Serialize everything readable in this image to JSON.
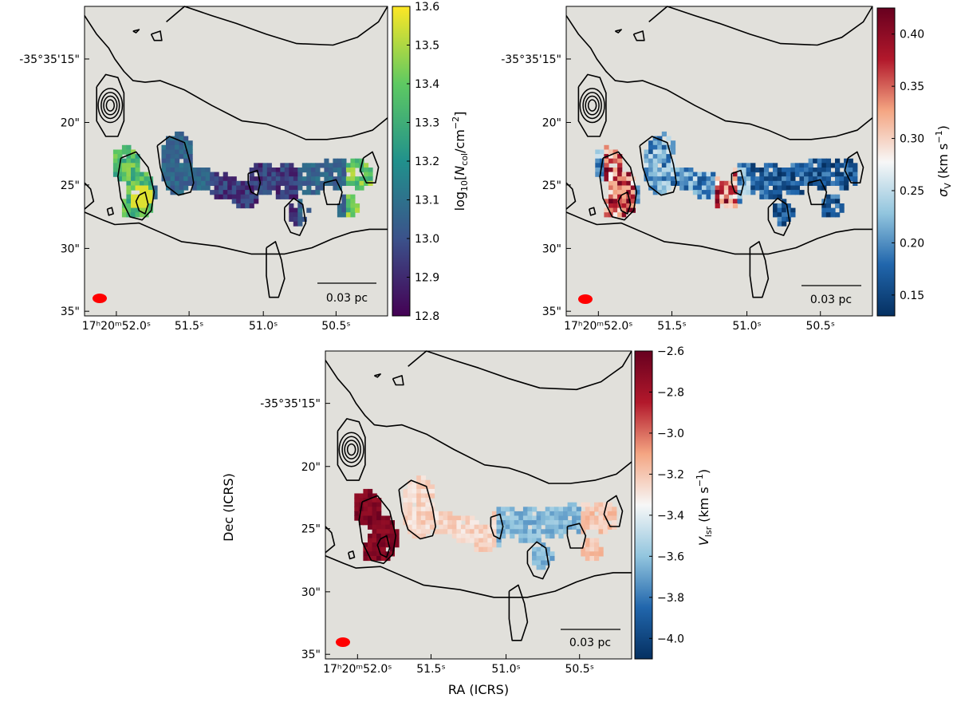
{
  "panels": [
    {
      "id": "coldens",
      "colorbar": {
        "label": "log₁₀[N col/cm⁻²]",
        "ticks": [
          "13.6",
          "13.5",
          "13.4",
          "13.3",
          "13.2",
          "13.1",
          "13.0",
          "12.9",
          "12.8"
        ],
        "vmin": 12.8,
        "vmax": 13.6,
        "colormap": [
          "#440154",
          "#3b528b",
          "#21918c",
          "#5ec962",
          "#fde725"
        ]
      },
      "yticks": [
        "-35°35'15\"",
        "20\"",
        "25\"",
        "30\"",
        "35\""
      ],
      "xticks": [
        "17ʰ20ᵐ52.0ˢ",
        "51.5ˢ",
        "51.0ˢ",
        "50.5ˢ"
      ],
      "scalebar": "0.03 pc"
    },
    {
      "id": "sigma",
      "colorbar": {
        "label": "σV (km s⁻¹)",
        "ticks": [
          "0.40",
          "0.35",
          "0.30",
          "0.25",
          "0.20",
          "0.15"
        ],
        "vmin": 0.13,
        "vmax": 0.425,
        "colormap": [
          "#053061",
          "#2166ac",
          "#92c5de",
          "#f7f7f7",
          "#f4a582",
          "#b2182b",
          "#67001f"
        ]
      },
      "yticks": [
        "-35°35'15\"",
        "20\"",
        "25\"",
        "30\"",
        "35\""
      ],
      "xticks": [
        "17ʰ20ᵐ52.0ˢ",
        "51.5ˢ",
        "51.0ˢ",
        "50.5ˢ"
      ],
      "scalebar": "0.03 pc"
    },
    {
      "id": "vlsr",
      "colorbar": {
        "label": "Vlsr (km s⁻¹)",
        "ticks": [
          "−2.6",
          "−2.8",
          "−3.0",
          "−3.2",
          "−3.4",
          "−3.6",
          "−3.8",
          "−4.0"
        ],
        "vmin": -4.1,
        "vmax": -2.6,
        "colormap": [
          "#053061",
          "#2166ac",
          "#92c5de",
          "#f7f7f7",
          "#f4a582",
          "#b2182b",
          "#67001f"
        ]
      },
      "yticks": [
        "-35°35'15\"",
        "20\"",
        "25\"",
        "30\"",
        "35\""
      ],
      "xticks": [
        "17ʰ20ᵐ52.0ˢ",
        "51.5ˢ",
        "51.0ˢ",
        "50.5ˢ"
      ],
      "scalebar": "0.03 pc",
      "xlabel": "RA (ICRS)",
      "ylabel": "Dec (ICRS)"
    }
  ],
  "colors": {
    "background": "#e1e0db",
    "beam": "#ff0000",
    "contour": "#000000"
  }
}
